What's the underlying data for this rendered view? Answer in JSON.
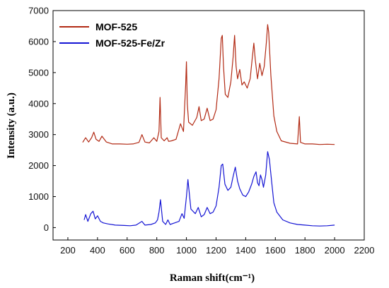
{
  "chart_data": {
    "type": "line",
    "title": "",
    "xlabel": "Raman shift(cm⁻¹)",
    "ylabel": "Intensity (a.u.)",
    "xlim": [
      100,
      2200
    ],
    "ylim": [
      -400,
      7000
    ],
    "xticks": [
      200,
      400,
      600,
      800,
      1000,
      1200,
      1400,
      1600,
      1800,
      2000,
      2200
    ],
    "yticks": [
      0,
      1000,
      2000,
      3000,
      4000,
      5000,
      6000,
      7000
    ],
    "grid": false,
    "legend_position": "top-left",
    "series": [
      {
        "name": "MOF-525",
        "color": "#b22a14",
        "x": [
          300,
          320,
          340,
          360,
          375,
          390,
          410,
          430,
          460,
          500,
          550,
          600,
          640,
          680,
          700,
          720,
          750,
          780,
          800,
          815,
          822,
          830,
          850,
          870,
          880,
          900,
          930,
          960,
          980,
          995,
          1000,
          1006,
          1015,
          1040,
          1070,
          1085,
          1100,
          1120,
          1140,
          1160,
          1180,
          1200,
          1220,
          1235,
          1242,
          1250,
          1262,
          1280,
          1300,
          1315,
          1325,
          1335,
          1345,
          1360,
          1375,
          1390,
          1410,
          1430,
          1445,
          1455,
          1465,
          1480,
          1495,
          1510,
          1525,
          1540,
          1548,
          1555,
          1570,
          1590,
          1610,
          1640,
          1700,
          1750,
          1762,
          1770,
          1800,
          1850,
          1900,
          1950,
          2000
        ],
        "values": [
          2750,
          2900,
          2760,
          2900,
          3080,
          2850,
          2780,
          2950,
          2760,
          2700,
          2700,
          2690,
          2700,
          2750,
          3000,
          2760,
          2730,
          2900,
          2780,
          3100,
          4200,
          2900,
          2800,
          2900,
          2780,
          2800,
          2850,
          3350,
          3100,
          4600,
          5350,
          4000,
          3400,
          3300,
          3550,
          3900,
          3450,
          3500,
          3850,
          3450,
          3500,
          3800,
          4800,
          6100,
          6200,
          5200,
          4300,
          4200,
          4700,
          5500,
          6200,
          5200,
          4800,
          5100,
          4600,
          4700,
          4500,
          4800,
          5500,
          5950,
          5400,
          4800,
          5300,
          4900,
          5200,
          6000,
          6550,
          6300,
          4900,
          3600,
          3100,
          2800,
          2720,
          2700,
          3580,
          2750,
          2700,
          2700,
          2680,
          2690,
          2680
        ]
      },
      {
        "name": "MOF-525-Fe/Zr",
        "color": "#1414d4",
        "x": [
          310,
          320,
          335,
          355,
          370,
          385,
          400,
          420,
          440,
          470,
          520,
          580,
          620,
          660,
          700,
          720,
          760,
          790,
          805,
          815,
          825,
          840,
          860,
          875,
          890,
          920,
          950,
          970,
          985,
          1000,
          1010,
          1030,
          1060,
          1080,
          1100,
          1120,
          1140,
          1160,
          1180,
          1200,
          1220,
          1235,
          1245,
          1260,
          1280,
          1300,
          1315,
          1330,
          1345,
          1360,
          1380,
          1400,
          1420,
          1440,
          1455,
          1470,
          1480,
          1490,
          1500,
          1510,
          1520,
          1535,
          1548,
          1560,
          1575,
          1590,
          1610,
          1650,
          1700,
          1750,
          1800,
          1850,
          1900,
          1950,
          2000
        ],
        "values": [
          250,
          420,
          200,
          450,
          530,
          280,
          380,
          200,
          150,
          120,
          80,
          70,
          60,
          80,
          200,
          80,
          100,
          150,
          250,
          500,
          900,
          200,
          100,
          250,
          100,
          150,
          200,
          450,
          300,
          1000,
          1550,
          600,
          450,
          650,
          350,
          420,
          650,
          450,
          500,
          700,
          1300,
          2000,
          2050,
          1400,
          1200,
          1300,
          1650,
          1950,
          1500,
          1250,
          1050,
          1000,
          1150,
          1400,
          1650,
          1800,
          1450,
          1350,
          1700,
          1550,
          1300,
          1700,
          2450,
          2200,
          1500,
          800,
          500,
          250,
          150,
          100,
          80,
          60,
          50,
          60,
          80
        ]
      }
    ]
  }
}
